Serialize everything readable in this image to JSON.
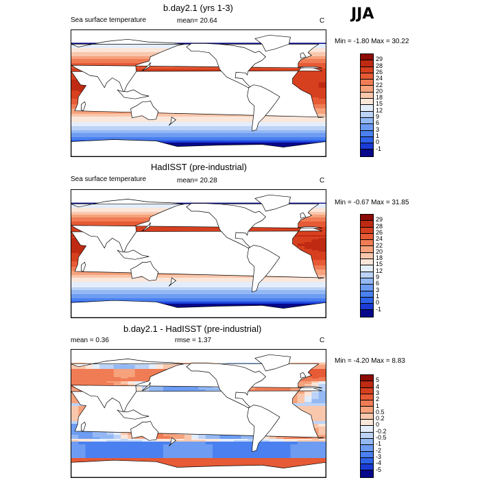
{
  "season": "JJA",
  "palettes": {
    "absolute": [
      "#08088a",
      "#1a3bd6",
      "#2e62e8",
      "#4a80f0",
      "#6d9cf2",
      "#93b8f4",
      "#bcd3f7",
      "#e4eefb",
      "#fbe6da",
      "#f9c7ac",
      "#f6a27c",
      "#f07c55",
      "#e65a35",
      "#d7401f",
      "#bf2a12",
      "#8d0c05"
    ],
    "diff": [
      "#08088a",
      "#1a3bd6",
      "#2e62e8",
      "#4a80f0",
      "#6d9cf2",
      "#93b8f4",
      "#bcd3f7",
      "#e4eefb",
      "#fbe6da",
      "#f9c7ac",
      "#f6a27c",
      "#f07c55",
      "#e65a35",
      "#d7401f",
      "#bf2a12",
      "#8d0c05"
    ]
  },
  "panels": [
    {
      "title": "b.day2.1 (yrs 1-3)",
      "left_label": "Sea surface temperature",
      "mid_label": "mean=  20.64",
      "unit": "C",
      "minmax": "Min = -1.80 Max = 30.22",
      "kind": "absolute",
      "levels": [
        "29",
        "28",
        "26",
        "24",
        "22",
        "20",
        "18",
        "15",
        "12",
        "9",
        "6",
        "3",
        "1",
        "0",
        "-1"
      ]
    },
    {
      "title": "HadISST (pre-industrial)",
      "left_label": "Sea surface temperature",
      "mid_label": "mean=  20.28",
      "unit": "C",
      "minmax": "Min = -0.67 Max = 31.85",
      "kind": "absolute",
      "levels": [
        "29",
        "28",
        "26",
        "24",
        "22",
        "20",
        "18",
        "15",
        "12",
        "9",
        "6",
        "3",
        "1",
        "0",
        "-1"
      ]
    },
    {
      "title": "b.day2.1 - HadISST (pre-industrial)",
      "left_label": "mean =   0.36",
      "mid_label": "rmse =    1.37",
      "unit": "C",
      "minmax": "Min = -4.20 Max =  8.83",
      "kind": "diff",
      "levels": [
        "5",
        "4",
        "3",
        "2",
        "1",
        "0.5",
        "0.2",
        "0",
        "-0.2",
        "-0.5",
        "-1",
        "-2",
        "-3",
        "-4",
        "-5"
      ]
    }
  ]
}
